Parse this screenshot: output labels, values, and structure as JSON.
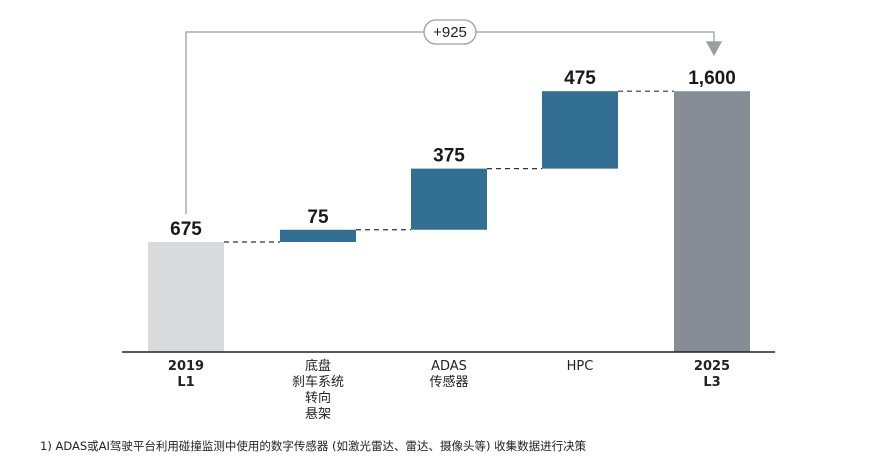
{
  "chart_data": {
    "type": "waterfall",
    "categories": [
      {
        "lines": [
          "2019",
          "L1"
        ],
        "bold": true
      },
      {
        "lines": [
          "底盘",
          "刹车系统",
          "转向",
          "悬架"
        ],
        "bold": false
      },
      {
        "lines": [
          "ADAS",
          "传感器"
        ],
        "bold": false
      },
      {
        "lines": [
          "HPC"
        ],
        "bold": false
      },
      {
        "lines": [
          "2025",
          "L3"
        ],
        "bold": true
      }
    ],
    "values": [
      675,
      75,
      375,
      475,
      1600
    ],
    "labels": [
      "675",
      "75",
      "375",
      "475",
      "1,600"
    ],
    "kinds": [
      "total",
      "increase",
      "increase",
      "increase",
      "total"
    ],
    "delta_label": "+925",
    "colors": {
      "start_total": "#d9dadc",
      "increase": "#336e93",
      "end_total": "#868d95",
      "connector": "#333333",
      "arrow": "#9a9fa4",
      "axis": "#222222"
    }
  },
  "footnote": "1) ADAS或AI驾驶平台利用碰撞监测中使用的数字传感器 (如激光雷达、雷达、摄像头等) 收集数据进行决策"
}
